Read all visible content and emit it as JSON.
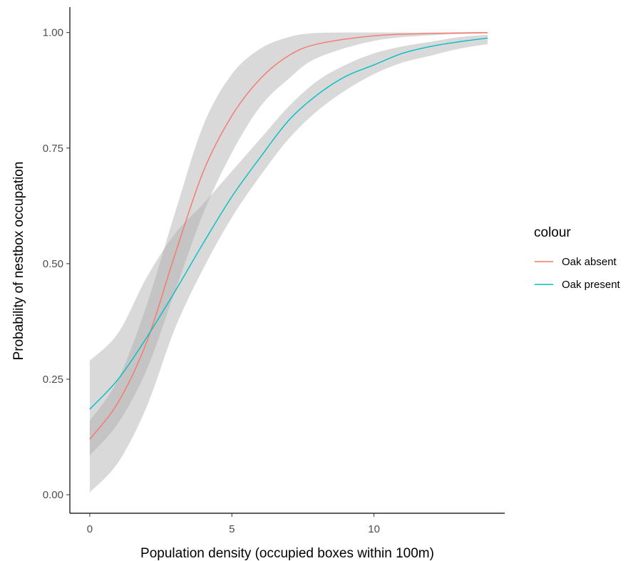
{
  "chart_data": {
    "type": "line",
    "xlabel": "Population density (occupied boxes within 100m)",
    "ylabel": "Probability of nestbox occupation",
    "xlim": [
      -0.7,
      14.6
    ],
    "ylim": [
      -0.04,
      1.055
    ],
    "x_ticks": [
      0,
      5,
      10
    ],
    "x_tick_labels": [
      "0",
      "5",
      "10"
    ],
    "y_ticks": [
      0,
      0.25,
      0.5,
      0.75,
      1
    ],
    "y_tick_labels": [
      "0.00",
      "0.25",
      "0.50",
      "0.75",
      "1.00"
    ],
    "grid": false,
    "legend": {
      "title": "colour",
      "position": "right"
    },
    "ribbon_color": "#aaaaaa",
    "series": [
      {
        "name": "Oak absent",
        "color": "#F8766D",
        "x": [
          0,
          1,
          2,
          3,
          4,
          5,
          6,
          7,
          8,
          10,
          12,
          14
        ],
        "y": [
          0.12,
          0.2,
          0.33,
          0.52,
          0.7,
          0.82,
          0.9,
          0.95,
          0.975,
          0.993,
          0.998,
          1.0
        ],
        "lower": [
          0.085,
          0.155,
          0.27,
          0.44,
          0.61,
          0.74,
          0.84,
          0.9,
          0.945,
          0.982,
          0.994,
          0.998
        ],
        "upper": [
          0.16,
          0.25,
          0.41,
          0.61,
          0.8,
          0.91,
          0.965,
          0.99,
          0.999,
          1.0,
          1.0,
          1.0
        ]
      },
      {
        "name": "Oak present",
        "color": "#00BFC4",
        "x": [
          0,
          1,
          2,
          3,
          4,
          5,
          6,
          7,
          8,
          9,
          10,
          11,
          12,
          13,
          14
        ],
        "y": [
          0.185,
          0.25,
          0.34,
          0.44,
          0.545,
          0.645,
          0.73,
          0.81,
          0.865,
          0.905,
          0.93,
          0.955,
          0.97,
          0.98,
          0.988
        ],
        "lower": [
          0.005,
          0.07,
          0.19,
          0.36,
          0.49,
          0.6,
          0.69,
          0.77,
          0.83,
          0.875,
          0.91,
          0.935,
          0.95,
          0.965,
          0.975
        ],
        "upper": [
          0.29,
          0.35,
          0.47,
          0.565,
          0.63,
          0.7,
          0.77,
          0.84,
          0.895,
          0.93,
          0.955,
          0.97,
          0.98,
          0.99,
          0.995
        ]
      }
    ]
  }
}
